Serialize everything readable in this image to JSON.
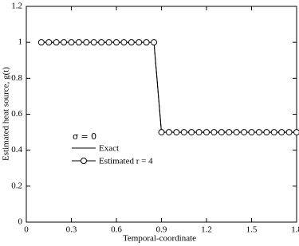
{
  "chart_data": {
    "type": "line",
    "xlabel": "Temporal-coordinate",
    "ylabel": "Estimated heat source, g(t)",
    "legend_title": "σ = 0",
    "xlim": [
      0,
      1.8
    ],
    "xticks": [
      0,
      0.3,
      0.6,
      0.9,
      1.2,
      1.5,
      1.8
    ],
    "ylim": [
      0,
      1.2
    ],
    "yticks": [
      0,
      0.2,
      0.4,
      0.6,
      0.8,
      1,
      1.2
    ],
    "series": [
      {
        "name": "Exact",
        "color": "#000000",
        "marker": false,
        "x": [
          0.1,
          0.85,
          0.9,
          1.8
        ],
        "values": [
          1,
          1,
          0.5,
          0.5
        ]
      },
      {
        "name": "Estimated r = 4",
        "color": "#000000",
        "marker": true,
        "x": [
          0.1,
          0.15,
          0.2,
          0.25,
          0.3,
          0.35,
          0.4,
          0.45,
          0.5,
          0.55,
          0.6,
          0.65,
          0.7,
          0.75,
          0.8,
          0.85,
          0.9,
          0.95,
          1,
          1.05,
          1.1,
          1.15,
          1.2,
          1.25,
          1.3,
          1.35,
          1.4,
          1.45,
          1.5,
          1.55,
          1.6,
          1.65,
          1.7,
          1.75,
          1.8
        ],
        "values": [
          1,
          1,
          1,
          1,
          1,
          1,
          1,
          1,
          1,
          1,
          1,
          1,
          1,
          1,
          1,
          1,
          0.5,
          0.5,
          0.5,
          0.5,
          0.5,
          0.5,
          0.5,
          0.5,
          0.5,
          0.5,
          0.5,
          0.5,
          0.5,
          0.5,
          0.5,
          0.5,
          0.5,
          0.5,
          0.5
        ]
      }
    ]
  }
}
